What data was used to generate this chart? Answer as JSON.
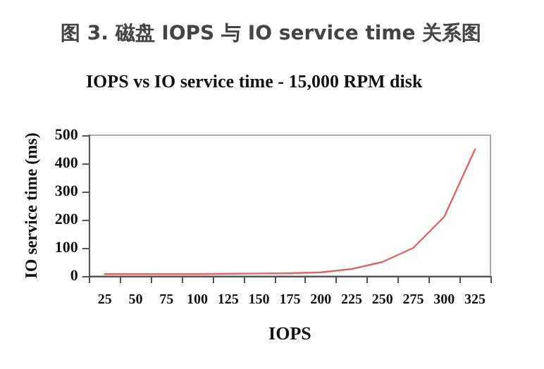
{
  "chart_data": {
    "type": "line",
    "title": "图 3. 磁盘 IOPS 与 IO service time 关系图",
    "subtitle": "IOPS vs IO service time - 15,000 RPM disk",
    "xlabel": "IOPS",
    "ylabel": "IO service time (ms)",
    "categories": [
      "25",
      "50",
      "75",
      "100",
      "125",
      "150",
      "175",
      "200",
      "225",
      "250",
      "275",
      "300",
      "325"
    ],
    "series": [
      {
        "color": "#e06666",
        "values": [
          7,
          7,
          7,
          7,
          8,
          9,
          10,
          13,
          25,
          50,
          100,
          210,
          450
        ]
      }
    ],
    "ylim": [
      0,
      500
    ],
    "yticks": [
      0,
      100,
      200,
      300,
      400,
      500
    ],
    "grid": false,
    "marker": "none",
    "line_style": "solid"
  }
}
